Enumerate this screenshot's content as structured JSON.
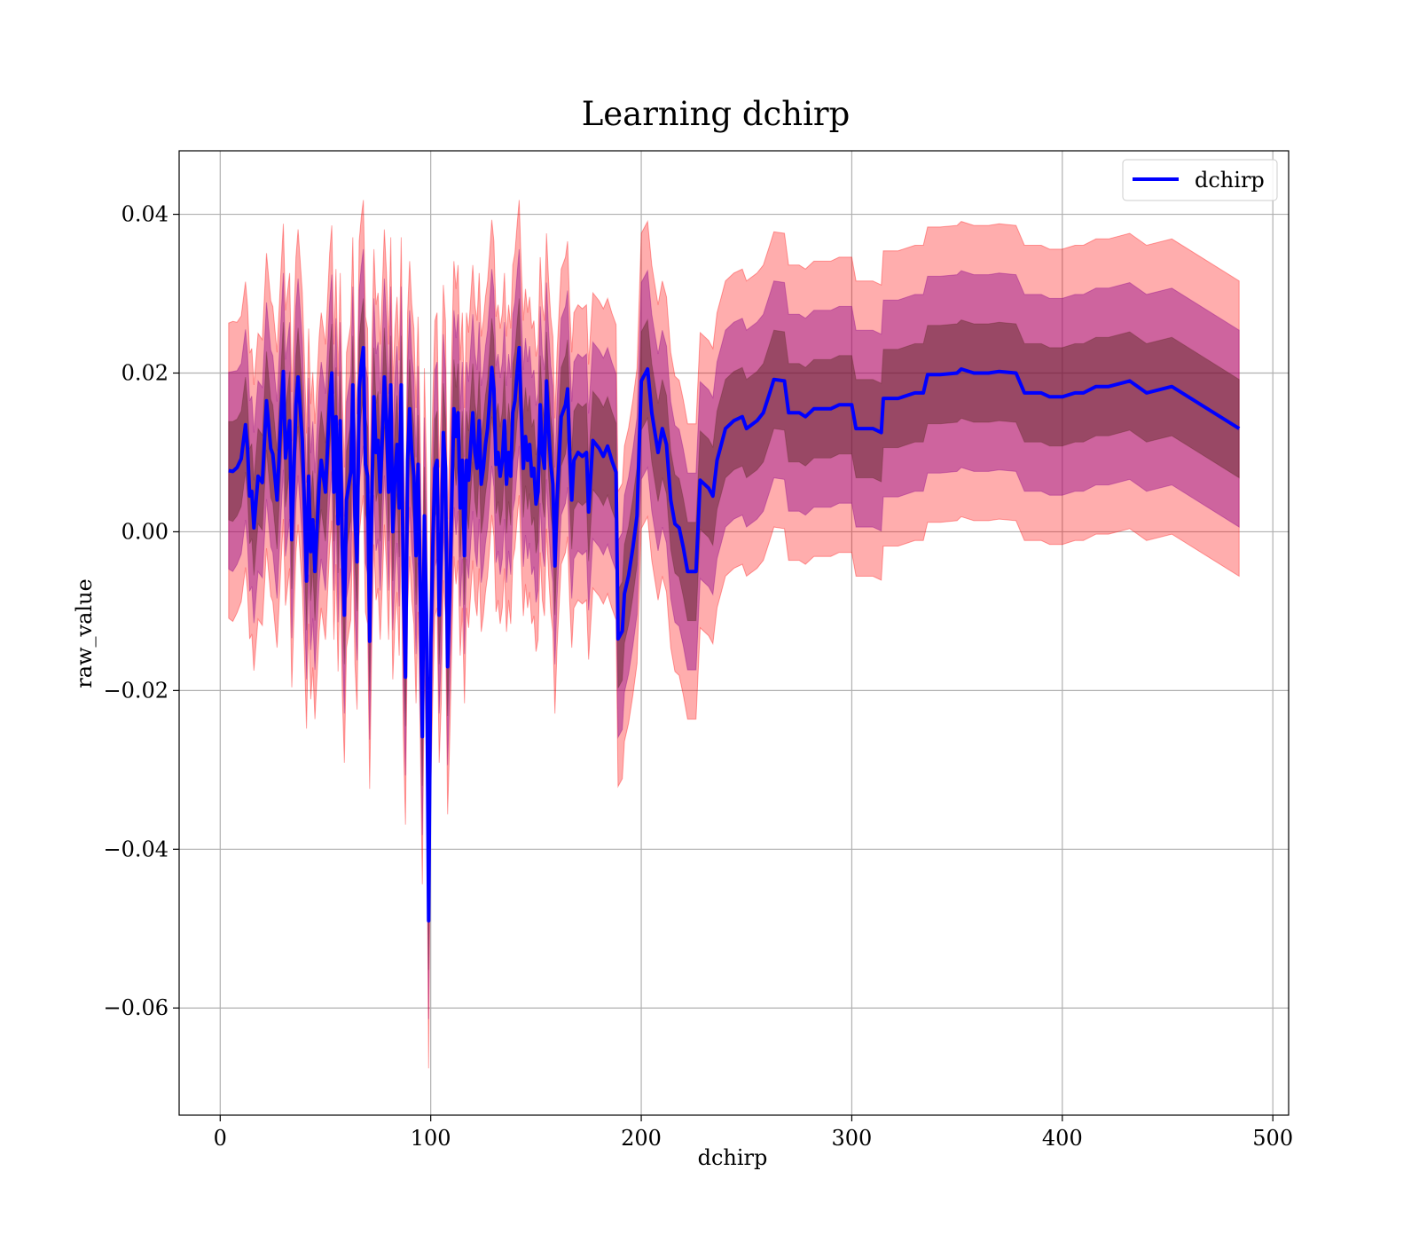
{
  "chart_data": {
    "type": "line",
    "title": "Learning dchirp",
    "xlabel": "dchirp",
    "ylabel": "raw_value",
    "xlim": [
      -19.5,
      507.5
    ],
    "ylim": [
      -0.0735,
      0.048
    ],
    "xticks": [
      0,
      100,
      200,
      300,
      400,
      500
    ],
    "xtick_labels": [
      "0",
      "100",
      "200",
      "300",
      "400",
      "500"
    ],
    "yticks": [
      -0.06,
      -0.04,
      -0.02,
      0.0,
      0.02,
      0.04
    ],
    "ytick_labels": [
      "−0.06",
      "−0.04",
      "−0.02",
      "0.00",
      "0.02",
      "0.04"
    ],
    "grid": true,
    "legend": {
      "position": "upper right",
      "entries": [
        "dchirp"
      ]
    },
    "colors": {
      "line": "#0000ff",
      "band_outer": "#ff0000",
      "band_middle": "#8b008b",
      "band_inner": "#4b1e0f",
      "grid": "#b0b0b0"
    },
    "series": [
      {
        "name": "dchirp",
        "note_bands": "shaded bands at approximately ±1, ±2, ±3 std around mean",
        "points": [
          [
            4,
            0.0077,
            0.0062
          ],
          [
            6,
            0.0076,
            0.0063
          ],
          [
            8,
            0.0081,
            0.0061
          ],
          [
            10,
            0.0092,
            0.006
          ],
          [
            12,
            0.0135,
            0.006
          ],
          [
            13,
            0.0105,
            0.006
          ],
          [
            14,
            0.0045,
            0.006
          ],
          [
            15,
            0.0051,
            0.006
          ],
          [
            16,
            0.0005,
            0.006
          ],
          [
            18,
            0.007,
            0.006
          ],
          [
            20,
            0.0062,
            0.006
          ],
          [
            22,
            0.0165,
            0.0062
          ],
          [
            24,
            0.0105,
            0.0062
          ],
          [
            25,
            0.0098,
            0.0062
          ],
          [
            27,
            0.004,
            0.0062
          ],
          [
            29,
            0.015,
            0.0062
          ],
          [
            30,
            0.0202,
            0.0062
          ],
          [
            31,
            0.0093,
            0.0062
          ],
          [
            33,
            0.014,
            0.0062
          ],
          [
            34,
            -0.001,
            0.0062
          ],
          [
            36,
            0.016,
            0.0062
          ],
          [
            37,
            0.0195,
            0.0062
          ],
          [
            39,
            0.0115,
            0.0062
          ],
          [
            40,
            0.0035,
            0.0062
          ],
          [
            41,
            -0.0062,
            0.0062
          ],
          [
            42,
            0.007,
            0.0062
          ],
          [
            43,
            -0.0025,
            0.0062
          ],
          [
            44,
            0.0015,
            0.0062
          ],
          [
            45,
            -0.005,
            0.0062
          ],
          [
            47,
            0.006,
            0.0062
          ],
          [
            48,
            0.009,
            0.0062
          ],
          [
            50,
            0.005,
            0.0062
          ],
          [
            52,
            0.0165,
            0.0062
          ],
          [
            53,
            0.02,
            0.0062
          ],
          [
            54,
            0.005,
            0.0062
          ],
          [
            55,
            0.0145,
            0.0062
          ],
          [
            56,
            0.001,
            0.0062
          ],
          [
            57,
            0.014,
            0.0062
          ],
          [
            58,
            -0.002,
            0.0062
          ],
          [
            59,
            -0.0105,
            0.0062
          ],
          [
            60,
            0.004,
            0.0062
          ],
          [
            62,
            0.0075,
            0.0062
          ],
          [
            63,
            0.0185,
            0.0062
          ],
          [
            64,
            0.002,
            0.0062
          ],
          [
            65,
            -0.0038,
            0.0062
          ],
          [
            66,
            0.018,
            0.0062
          ],
          [
            67,
            0.021,
            0.0062
          ],
          [
            68,
            0.0232,
            0.0062
          ],
          [
            69,
            0.0085,
            0.0062
          ],
          [
            70,
            0.007,
            0.0062
          ],
          [
            71,
            -0.0138,
            0.0062
          ],
          [
            72,
            0.004,
            0.0062
          ],
          [
            73,
            0.017,
            0.0062
          ],
          [
            74,
            0.01,
            0.0062
          ],
          [
            75,
            0.0115,
            0.0062
          ],
          [
            76,
            0.005,
            0.0062
          ],
          [
            77,
            0.012,
            0.0062
          ],
          [
            78,
            0.0195,
            0.0062
          ],
          [
            79,
            0.014,
            0.0062
          ],
          [
            80,
            0.005,
            0.0062
          ],
          [
            81,
            0.0185,
            0.0062
          ],
          [
            82,
            0.0,
            0.0062
          ],
          [
            83,
            0.007,
            0.0062
          ],
          [
            84,
            0.011,
            0.0062
          ],
          [
            85,
            0.003,
            0.0062
          ],
          [
            86,
            0.0185,
            0.0062
          ],
          [
            87,
            -0.007,
            0.0062
          ],
          [
            88,
            -0.0183,
            0.0062
          ],
          [
            89,
            0.009,
            0.0062
          ],
          [
            90,
            0.0155,
            0.0062
          ],
          [
            91,
            0.01,
            0.0062
          ],
          [
            92,
            0.007,
            0.0062
          ],
          [
            93,
            -0.003,
            0.0062
          ],
          [
            94,
            0.0085,
            0.0062
          ],
          [
            95,
            -0.0065,
            0.0062
          ],
          [
            96,
            -0.0258,
            0.0062
          ],
          [
            97,
            0.002,
            0.0062
          ],
          [
            98,
            -0.0105,
            0.0062
          ],
          [
            99,
            -0.049,
            0.0062
          ],
          [
            100,
            -0.014,
            0.0062
          ],
          [
            101,
            -0.002,
            0.0062
          ],
          [
            102,
            0.008,
            0.0062
          ],
          [
            103,
            0.009,
            0.0062
          ],
          [
            104,
            -0.0105,
            0.0062
          ],
          [
            105,
            -0.003,
            0.0062
          ],
          [
            106,
            0.0125,
            0.0062
          ],
          [
            107,
            0.008,
            0.0062
          ],
          [
            108,
            -0.017,
            0.0062
          ],
          [
            109,
            -0.008,
            0.0062
          ],
          [
            110,
            0.004,
            0.0062
          ],
          [
            111,
            0.0155,
            0.0062
          ],
          [
            112,
            0.012,
            0.0062
          ],
          [
            113,
            0.015,
            0.0062
          ],
          [
            114,
            0.003,
            0.0062
          ],
          [
            115,
            0.009,
            0.0062
          ],
          [
            116,
            -0.003,
            0.0062
          ],
          [
            117,
            0.009,
            0.0062
          ],
          [
            118,
            0.0065,
            0.0062
          ],
          [
            119,
            0.011,
            0.0062
          ],
          [
            120,
            0.015,
            0.0062
          ],
          [
            121,
            0.01,
            0.0062
          ],
          [
            122,
            0.008,
            0.0062
          ],
          [
            123,
            0.014,
            0.0062
          ],
          [
            124,
            0.006,
            0.0062
          ],
          [
            125,
            0.008,
            0.0062
          ],
          [
            126,
            0.011,
            0.0062
          ],
          [
            127,
            0.013,
            0.0062
          ],
          [
            128,
            0.0165,
            0.0062
          ],
          [
            129,
            0.0207,
            0.0062
          ],
          [
            130,
            0.018,
            0.0062
          ],
          [
            131,
            0.0085,
            0.0062
          ],
          [
            132,
            0.01,
            0.0062
          ],
          [
            133,
            0.007,
            0.0062
          ],
          [
            134,
            0.009,
            0.0062
          ],
          [
            135,
            0.014,
            0.0062
          ],
          [
            136,
            0.006,
            0.0062
          ],
          [
            137,
            0.01,
            0.0062
          ],
          [
            138,
            0.007,
            0.0062
          ],
          [
            139,
            0.015,
            0.0062
          ],
          [
            140,
            0.0165,
            0.0062
          ],
          [
            141,
            0.02,
            0.0062
          ],
          [
            142,
            0.0232,
            0.0062
          ],
          [
            143,
            0.015,
            0.0062
          ],
          [
            144,
            0.008,
            0.0062
          ],
          [
            145,
            0.012,
            0.0062
          ],
          [
            146,
            0.009,
            0.0062
          ],
          [
            147,
            0.011,
            0.0062
          ],
          [
            148,
            0.007,
            0.0062
          ],
          [
            149,
            0.008,
            0.0062
          ],
          [
            150,
            0.0035,
            0.0062
          ],
          [
            151,
            0.005,
            0.0062
          ],
          [
            152,
            0.016,
            0.0062
          ],
          [
            153,
            0.01,
            0.0062
          ],
          [
            154,
            0.008,
            0.0062
          ],
          [
            155,
            0.019,
            0.0062
          ],
          [
            156,
            0.013,
            0.0062
          ],
          [
            157,
            0.0085,
            0.0062
          ],
          [
            158,
            0.006,
            0.0062
          ],
          [
            159,
            -0.0043,
            0.0062
          ],
          [
            160,
            0.004,
            0.0062
          ],
          [
            162,
            0.0145,
            0.0062
          ],
          [
            164,
            0.016,
            0.0062
          ],
          [
            165,
            0.018,
            0.0062
          ],
          [
            166,
            0.01,
            0.0062
          ],
          [
            167,
            0.004,
            0.0062
          ],
          [
            168,
            0.009,
            0.0062
          ],
          [
            170,
            0.01,
            0.0062
          ],
          [
            172,
            0.0095,
            0.0062
          ],
          [
            174,
            0.01,
            0.0062
          ],
          [
            175,
            0.0025,
            0.0062
          ],
          [
            177,
            0.0115,
            0.0062
          ],
          [
            180,
            0.0105,
            0.0062
          ],
          [
            182,
            0.0095,
            0.0062
          ],
          [
            184,
            0.0108,
            0.0062
          ],
          [
            186,
            0.009,
            0.0062
          ],
          [
            188,
            0.0075,
            0.0062
          ],
          [
            189,
            -0.0135,
            0.0062
          ],
          [
            191,
            -0.0125,
            0.0062
          ],
          [
            192,
            -0.0078,
            0.0062
          ],
          [
            194,
            -0.0055,
            0.0062
          ],
          [
            196,
            -0.002,
            0.0062
          ],
          [
            198,
            0.002,
            0.0062
          ],
          [
            200,
            0.019,
            0.0062
          ],
          [
            202,
            0.02,
            0.0062
          ],
          [
            203,
            0.0205,
            0.0062
          ],
          [
            205,
            0.015,
            0.0062
          ],
          [
            208,
            0.01,
            0.0062
          ],
          [
            210,
            0.013,
            0.0062
          ],
          [
            212,
            0.011,
            0.0062
          ],
          [
            214,
            0.004,
            0.0062
          ],
          [
            216,
            0.001,
            0.0062
          ],
          [
            218,
            0.0005,
            0.0062
          ],
          [
            220,
            -0.002,
            0.0062
          ],
          [
            222,
            -0.005,
            0.0062
          ],
          [
            226,
            -0.005,
            0.0062
          ],
          [
            228,
            0.0065,
            0.0062
          ],
          [
            232,
            0.0055,
            0.0062
          ],
          [
            234,
            0.0045,
            0.0062
          ],
          [
            236,
            0.009,
            0.0062
          ],
          [
            238,
            0.011,
            0.0062
          ],
          [
            240,
            0.013,
            0.0062
          ],
          [
            244,
            0.014,
            0.0062
          ],
          [
            248,
            0.0145,
            0.0062
          ],
          [
            250,
            0.013,
            0.0062
          ],
          [
            255,
            0.014,
            0.0062
          ],
          [
            258,
            0.015,
            0.0062
          ],
          [
            261,
            0.0175,
            0.0062
          ],
          [
            263,
            0.0192,
            0.0062
          ],
          [
            268,
            0.019,
            0.0062
          ],
          [
            270,
            0.015,
            0.0062
          ],
          [
            275,
            0.015,
            0.0062
          ],
          [
            278,
            0.0145,
            0.0062
          ],
          [
            282,
            0.0155,
            0.0062
          ],
          [
            290,
            0.0155,
            0.0062
          ],
          [
            294,
            0.016,
            0.0062
          ],
          [
            300,
            0.016,
            0.0062
          ],
          [
            302,
            0.013,
            0.0062
          ],
          [
            310,
            0.013,
            0.0062
          ],
          [
            314,
            0.0125,
            0.0062
          ],
          [
            315,
            0.0168,
            0.0062
          ],
          [
            322,
            0.0168,
            0.0062
          ],
          [
            330,
            0.0175,
            0.0062
          ],
          [
            334,
            0.0175,
            0.0062
          ],
          [
            336,
            0.0198,
            0.0062
          ],
          [
            342,
            0.0198,
            0.0062
          ],
          [
            350,
            0.02,
            0.0062
          ],
          [
            352,
            0.0205,
            0.0062
          ],
          [
            358,
            0.02,
            0.0062
          ],
          [
            365,
            0.02,
            0.0062
          ],
          [
            370,
            0.0202,
            0.0062
          ],
          [
            378,
            0.02,
            0.0062
          ],
          [
            382,
            0.0175,
            0.0062
          ],
          [
            390,
            0.0175,
            0.0062
          ],
          [
            394,
            0.017,
            0.0062
          ],
          [
            400,
            0.017,
            0.0062
          ],
          [
            406,
            0.0175,
            0.0062
          ],
          [
            410,
            0.0175,
            0.0062
          ],
          [
            416,
            0.0183,
            0.0062
          ],
          [
            422,
            0.0183,
            0.0062
          ],
          [
            432,
            0.019,
            0.0062
          ],
          [
            440,
            0.0175,
            0.0062
          ],
          [
            452,
            0.0183,
            0.0062
          ],
          [
            484,
            0.013,
            0.0062
          ]
        ]
      }
    ]
  }
}
